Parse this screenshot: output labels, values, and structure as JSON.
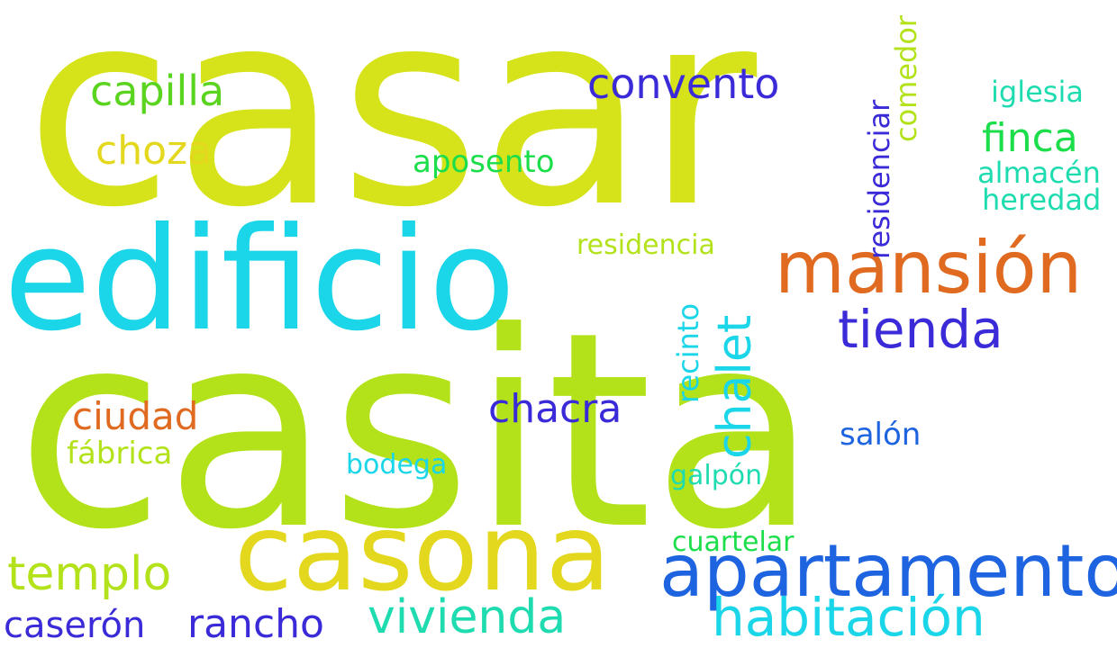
{
  "colors": {
    "yellow_lime": "#d6e31a",
    "lime": "#b3e21b",
    "yellow": "#e3d81e",
    "cyan": "#1bd6e8",
    "orange": "#e06a20",
    "blue": "#1e64e0",
    "indigo": "#3a2ad8",
    "green": "#1bde4a",
    "teal": "#1fdcb0",
    "bright_green": "#5ad41e"
  },
  "words": {
    "casar": "casar",
    "casita": "casita",
    "edificio": "edificio",
    "casona": "casona",
    "mansion": "mansión",
    "apartamento": "apartamento",
    "habitacion": "habitación",
    "tienda": "tienda",
    "vivienda": "vivienda",
    "templo": "templo",
    "capilla": "capilla",
    "convento": "convento",
    "rancho": "rancho",
    "caseron": "caserón",
    "chacra": "chacra",
    "finca": "finca",
    "choza": "choza",
    "ciudad": "ciudad",
    "chalet": "chalet",
    "aposento": "aposento",
    "iglesia": "iglesia",
    "almacen": "almacén",
    "heredad": "heredad",
    "residencia": "residencia",
    "residenciar": "residenciar",
    "comedor": "comedor",
    "fabrica": "fábrica",
    "salon": "salón",
    "bodega": "bodega",
    "recinto": "recinto",
    "galpon": "galpón",
    "cuartelar": "cuartelar"
  }
}
